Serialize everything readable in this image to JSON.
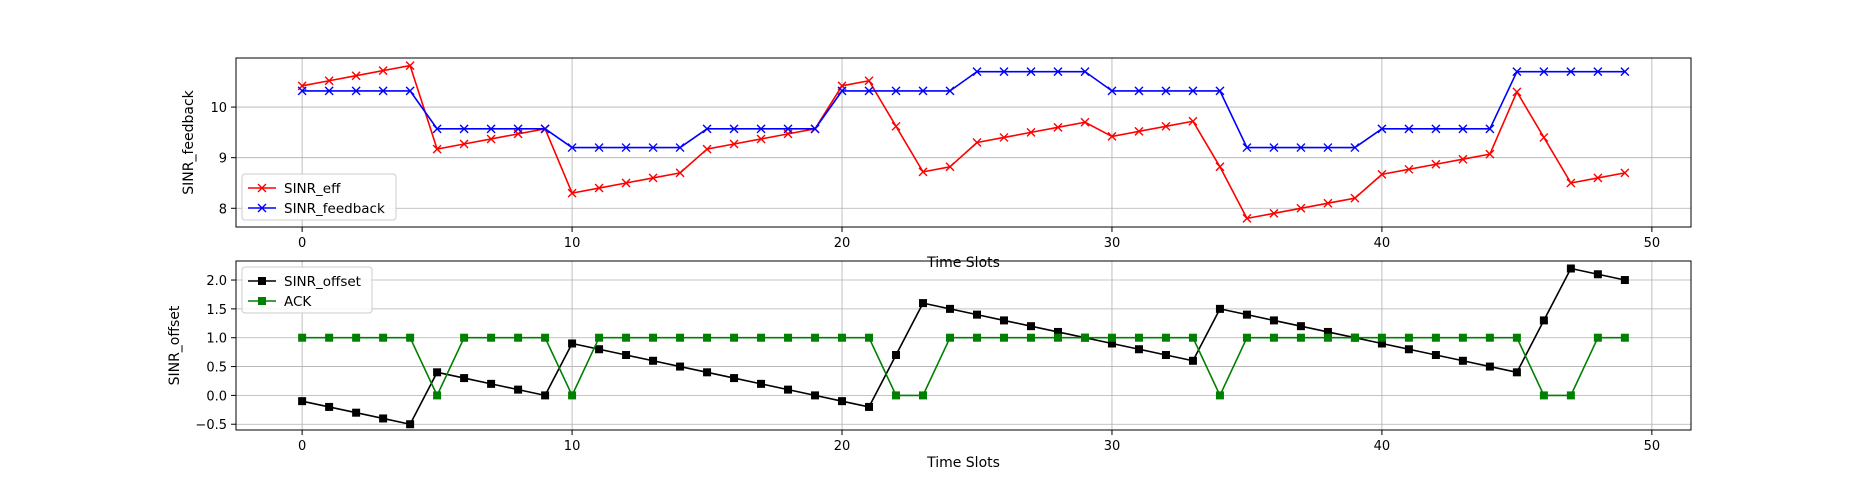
{
  "chart_data": [
    {
      "type": "line",
      "xlabel": "Time Slots",
      "ylabel": "SINR_feedback",
      "xlim": [
        -2.45,
        51.45
      ],
      "ylim": [
        7.63,
        10.97
      ],
      "xticks": [
        0,
        10,
        20,
        30,
        40,
        50
      ],
      "yticks": [
        8,
        9,
        10
      ],
      "grid": true,
      "legend_position": "lower-left",
      "x": [
        0,
        1,
        2,
        3,
        4,
        5,
        6,
        7,
        8,
        9,
        10,
        11,
        12,
        13,
        14,
        15,
        16,
        17,
        18,
        19,
        20,
        21,
        22,
        23,
        24,
        25,
        26,
        27,
        28,
        29,
        30,
        31,
        32,
        33,
        34,
        35,
        36,
        37,
        38,
        39,
        40,
        41,
        42,
        43,
        44,
        45,
        46,
        47,
        48,
        49
      ],
      "series": [
        {
          "name": "SINR_eff",
          "color": "#ff0000",
          "marker": "x",
          "values": [
            10.42,
            10.52,
            10.62,
            10.72,
            10.82,
            9.17,
            9.27,
            9.37,
            9.47,
            9.57,
            8.3,
            8.4,
            8.5,
            8.6,
            8.7,
            9.17,
            9.27,
            9.37,
            9.47,
            9.57,
            10.42,
            10.52,
            9.62,
            8.72,
            8.82,
            9.3,
            9.4,
            9.5,
            9.6,
            9.7,
            9.42,
            9.52,
            9.62,
            9.72,
            8.82,
            7.8,
            7.9,
            8.0,
            8.1,
            8.2,
            8.67,
            8.77,
            8.87,
            8.97,
            9.07,
            10.3,
            9.4,
            8.5,
            8.6,
            8.7
          ]
        },
        {
          "name": "SINR_feedback",
          "color": "#0000ff",
          "marker": "x",
          "values": [
            10.32,
            10.32,
            10.32,
            10.32,
            10.32,
            9.57,
            9.57,
            9.57,
            9.57,
            9.57,
            9.2,
            9.2,
            9.2,
            9.2,
            9.2,
            9.57,
            9.57,
            9.57,
            9.57,
            9.57,
            10.32,
            10.32,
            10.32,
            10.32,
            10.32,
            10.7,
            10.7,
            10.7,
            10.7,
            10.7,
            10.32,
            10.32,
            10.32,
            10.32,
            10.32,
            9.2,
            9.2,
            9.2,
            9.2,
            9.2,
            9.57,
            9.57,
            9.57,
            9.57,
            9.57,
            10.7,
            10.7,
            10.7,
            10.7,
            10.7
          ]
        }
      ]
    },
    {
      "type": "line",
      "xlabel": "Time Slots",
      "ylabel": "SINR_offset",
      "xlim": [
        -2.45,
        51.45
      ],
      "ylim": [
        -0.6,
        2.33
      ],
      "xticks": [
        0,
        10,
        20,
        30,
        40,
        50
      ],
      "yticks": [
        -0.5,
        0.0,
        0.5,
        1.0,
        1.5,
        2.0
      ],
      "ytick_labels": [
        "−0.5",
        "0.0",
        "0.5",
        "1.0",
        "1.5",
        "2.0"
      ],
      "grid": true,
      "legend_position": "upper-left",
      "x": [
        0,
        1,
        2,
        3,
        4,
        5,
        6,
        7,
        8,
        9,
        10,
        11,
        12,
        13,
        14,
        15,
        16,
        17,
        18,
        19,
        20,
        21,
        22,
        23,
        24,
        25,
        26,
        27,
        28,
        29,
        30,
        31,
        32,
        33,
        34,
        35,
        36,
        37,
        38,
        39,
        40,
        41,
        42,
        43,
        44,
        45,
        46,
        47,
        48,
        49
      ],
      "series": [
        {
          "name": "SINR_offset",
          "color": "#000000",
          "marker": "square",
          "values": [
            -0.1,
            -0.2,
            -0.3,
            -0.4,
            -0.5,
            0.4,
            0.3,
            0.2,
            0.1,
            0.0,
            0.9,
            0.8,
            0.7,
            0.6,
            0.5,
            0.4,
            0.3,
            0.2,
            0.1,
            0.0,
            -0.1,
            -0.2,
            0.7,
            1.6,
            1.5,
            1.4,
            1.3,
            1.2,
            1.1,
            1.0,
            0.9,
            0.8,
            0.7,
            0.6,
            1.5,
            1.4,
            1.3,
            1.2,
            1.1,
            1.0,
            0.9,
            0.8,
            0.7,
            0.6,
            0.5,
            0.4,
            1.3,
            2.2,
            2.1,
            2.0
          ]
        },
        {
          "name": "ACK",
          "color": "#008000",
          "marker": "square",
          "values": [
            1,
            1,
            1,
            1,
            1,
            0,
            1,
            1,
            1,
            1,
            0,
            1,
            1,
            1,
            1,
            1,
            1,
            1,
            1,
            1,
            1,
            1,
            0,
            0,
            1,
            1,
            1,
            1,
            1,
            1,
            1,
            1,
            1,
            1,
            0,
            1,
            1,
            1,
            1,
            1,
            1,
            1,
            1,
            1,
            1,
            1,
            0,
            0,
            1,
            1
          ]
        }
      ]
    }
  ]
}
